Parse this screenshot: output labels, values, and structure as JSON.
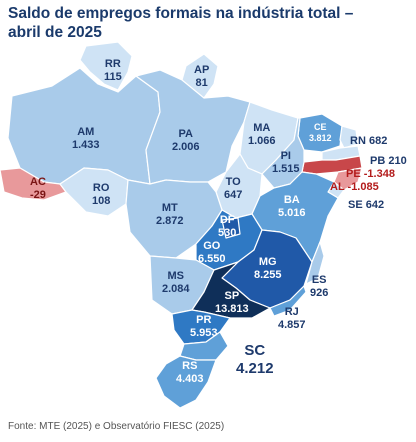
{
  "title": {
    "line1": "Saldo de empregos formais na indústria total –",
    "line2": "abril de 2025"
  },
  "colors": {
    "very_light": "#cfe3f5",
    "light": "#a9cbea",
    "medium": "#5fa0d8",
    "strong": "#2f79c4",
    "dark": "#2059a8",
    "darkest": "#0f2f59",
    "negative_light": "#e8999b",
    "negative_strong": "#c8474a",
    "border": "#ffffff"
  },
  "states": [
    {
      "code": "RR",
      "value": "115"
    },
    {
      "code": "AP",
      "value": "81"
    },
    {
      "code": "AM",
      "value": "1.433"
    },
    {
      "code": "PA",
      "value": "2.006"
    },
    {
      "code": "MA",
      "value": "1.066"
    },
    {
      "code": "CE",
      "value": "3.812"
    },
    {
      "code": "RN",
      "value": "682"
    },
    {
      "code": "PI",
      "value": "1.515"
    },
    {
      "code": "PB",
      "value": "210"
    },
    {
      "code": "PE",
      "value": "-1.348"
    },
    {
      "code": "AL",
      "value": "-1.085"
    },
    {
      "code": "SE",
      "value": "642"
    },
    {
      "code": "AC",
      "value": "-29"
    },
    {
      "code": "RO",
      "value": "108"
    },
    {
      "code": "TO",
      "value": "647"
    },
    {
      "code": "MT",
      "value": "2.872"
    },
    {
      "code": "BA",
      "value": "5.016"
    },
    {
      "code": "DF",
      "value": "530"
    },
    {
      "code": "GO",
      "value": "6.550"
    },
    {
      "code": "MG",
      "value": "8.255"
    },
    {
      "code": "MS",
      "value": "2.084"
    },
    {
      "code": "ES",
      "value": "926"
    },
    {
      "code": "SP",
      "value": "13.813"
    },
    {
      "code": "RJ",
      "value": "4.857"
    },
    {
      "code": "PR",
      "value": "5.953"
    },
    {
      "code": "SC",
      "value": "4.212"
    },
    {
      "code": "RS",
      "value": "4.403"
    }
  ],
  "source": "Fonte: MTE (2025) e Observatório FIESC (2025)"
}
